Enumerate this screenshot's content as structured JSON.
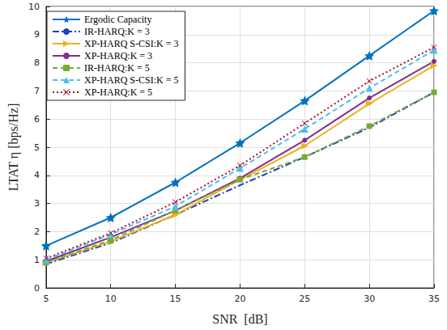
{
  "chart_data": {
    "type": "line",
    "x_label": "SNR  [dB]",
    "y_label": "LTAT η [bps/Hz]",
    "x": [
      5,
      10,
      15,
      20,
      25,
      30,
      35
    ],
    "xlim": [
      5,
      35
    ],
    "xticks": [
      5,
      10,
      15,
      20,
      25,
      30,
      35
    ],
    "ylim": [
      0,
      10
    ],
    "yticks": [
      0,
      1,
      2,
      3,
      4,
      5,
      6,
      7,
      8,
      9,
      10
    ],
    "grid": true,
    "legend": "upper left",
    "series": [
      {
        "name": "Ergodic Capacity",
        "color": "#0072BD",
        "marker": "star",
        "line_style": "solid",
        "values": [
          1.5,
          2.5,
          3.75,
          5.15,
          6.65,
          8.25,
          9.85
        ]
      },
      {
        "name": "IR-HARQ:K = 3",
        "color": "#1F3FBF",
        "marker": "none",
        "line_style": "dashdot",
        "values": [
          0.85,
          1.6,
          2.6,
          3.65,
          4.65,
          5.7,
          6.95
        ]
      },
      {
        "name": "XP-HARQ S-CSI:K = 3",
        "color": "#EDB120",
        "marker": "triangle-right",
        "line_style": "solid",
        "values": [
          0.9,
          1.65,
          2.6,
          3.85,
          5.05,
          6.55,
          7.9
        ]
      },
      {
        "name": "XP-HARQ:K = 3",
        "color": "#7E2F8E",
        "marker": "circle",
        "line_style": "solid",
        "values": [
          0.95,
          1.8,
          2.75,
          3.9,
          5.25,
          6.75,
          8.05
        ]
      },
      {
        "name": "IR-HARQ:K = 5",
        "color": "#77AC30",
        "marker": "square",
        "line_style": "dashed",
        "values": [
          0.9,
          1.7,
          2.75,
          3.85,
          4.65,
          5.75,
          6.95
        ]
      },
      {
        "name": "XP-HARQ S-CSI:K = 5",
        "color": "#4DBEEE",
        "marker": "triangle",
        "line_style": "dashed",
        "values": [
          1.0,
          1.9,
          2.9,
          4.25,
          5.65,
          7.1,
          8.45
        ]
      },
      {
        "name": "XP-HARQ:K = 5",
        "color": "#A2142F",
        "marker": "x",
        "line_style": "dotted",
        "values": [
          1.05,
          1.95,
          3.05,
          4.35,
          5.85,
          7.35,
          8.55
        ]
      }
    ]
  }
}
